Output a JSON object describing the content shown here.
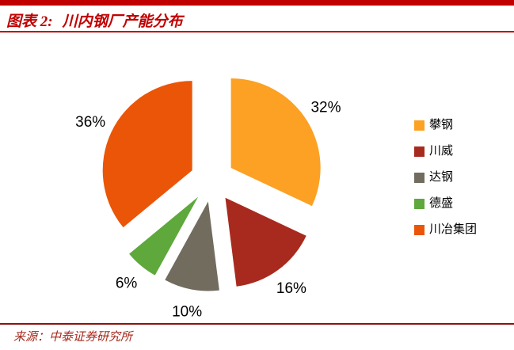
{
  "header": {
    "figure_label": "图表 2:",
    "title": "川内钢厂产能分布"
  },
  "footer": {
    "source": "来源：中泰证券研究所"
  },
  "colors": {
    "accent_red": "#C00000",
    "footer_line": "#8F120B",
    "footer_text": "#A5281B",
    "label_text": "#000000"
  },
  "chart_data": {
    "type": "pie",
    "title": "川内钢厂产能分布",
    "categories": [
      "攀钢",
      "川威",
      "达钢",
      "德盛",
      "川冶集团"
    ],
    "values": [
      32,
      16,
      10,
      6,
      36
    ],
    "percent_labels": [
      "32%",
      "16%",
      "10%",
      "6%",
      "36%"
    ],
    "colors": [
      "#FCA123",
      "#A82A1E",
      "#716C5E",
      "#5EA83C",
      "#EB5507"
    ],
    "legend_position": "right",
    "start_angle_deg": 0,
    "direction": "clockwise",
    "exploded": true,
    "unit": "%"
  }
}
